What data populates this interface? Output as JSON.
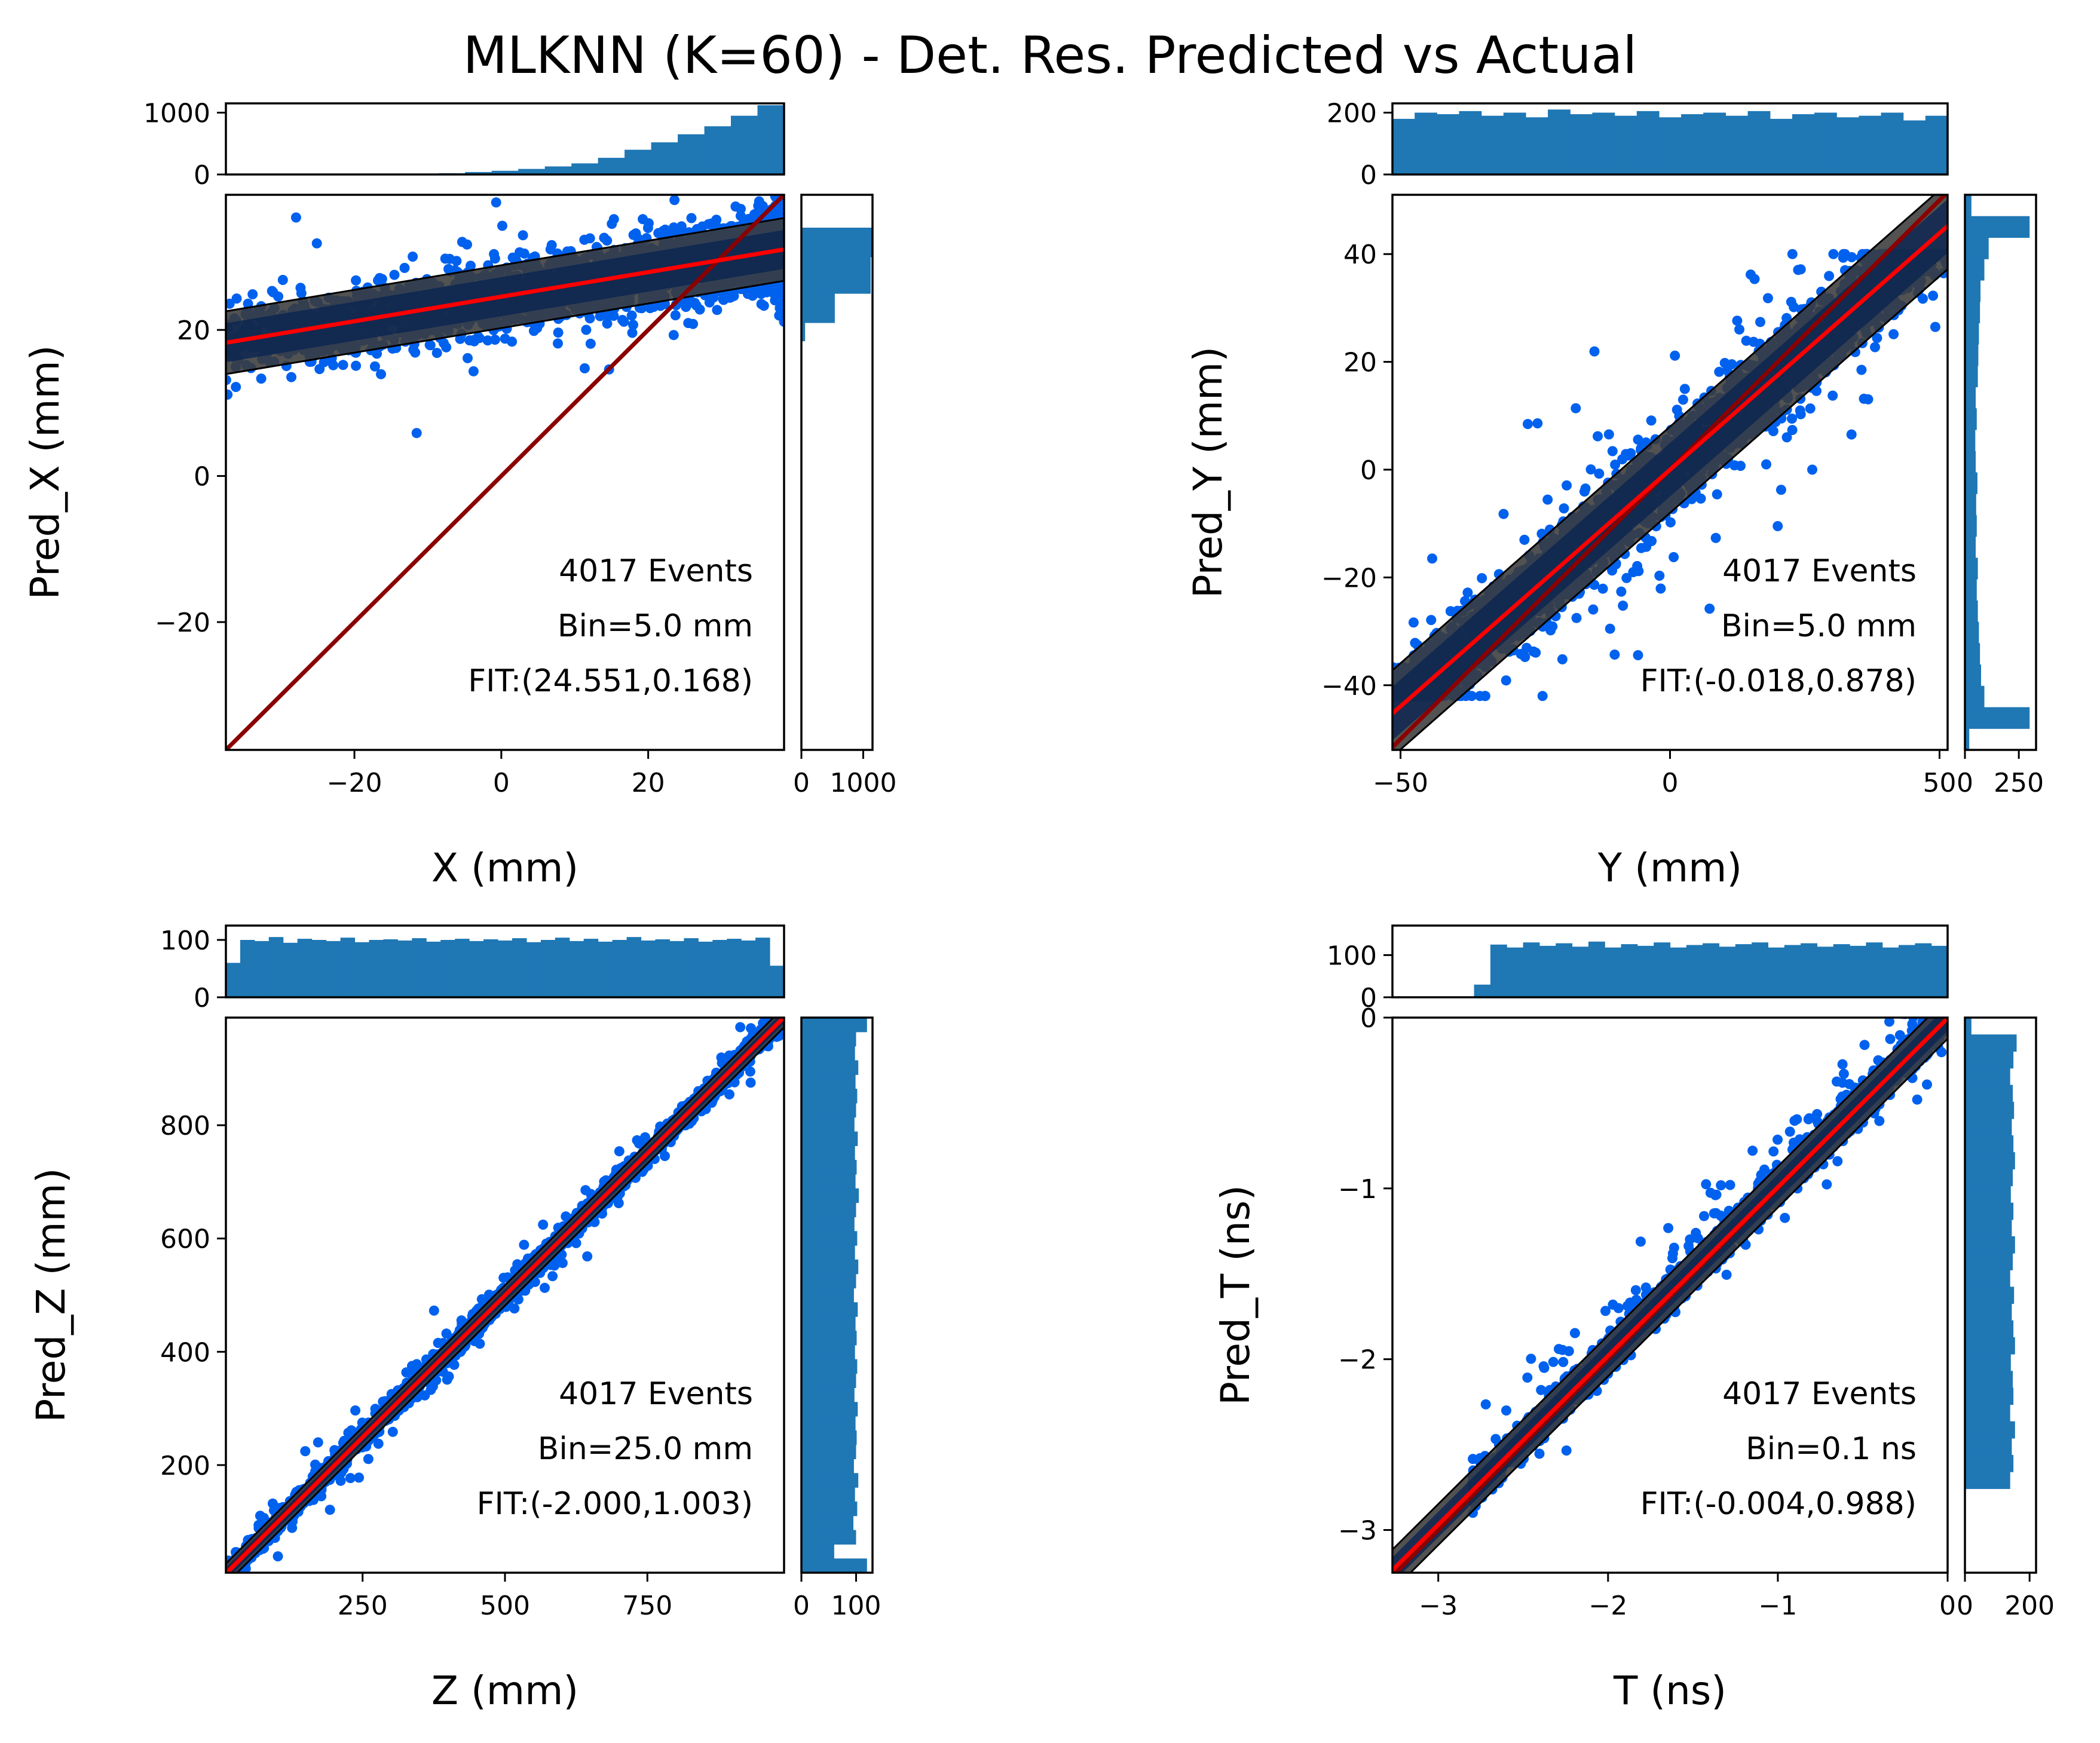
{
  "figure": {
    "title": "MLKNN (K=60) - Det. Res. Predicted vs Actual",
    "colors": {
      "scatter": "#0061ee",
      "histogram": "#1f77b4",
      "band_fill": "#3a3a3a",
      "band_edge": "#000000",
      "dense_core": "#0b2550",
      "fit_line": "#ff0000",
      "identity_line": "#8b0000"
    }
  },
  "chart_data": [
    {
      "id": "x",
      "type": "scatter",
      "xlabel": "X (mm)",
      "ylabel": "Pred_X (mm)",
      "xlim": [
        -37.5,
        38.5
      ],
      "ylim": [
        -37.5,
        38.5
      ],
      "xticks": [
        -20,
        0,
        20
      ],
      "xticklabels": [
        "−20",
        "0",
        "20"
      ],
      "yticks": [
        -20,
        0,
        20
      ],
      "yticklabels": [
        "−20",
        "0",
        "20"
      ],
      "annotations": [
        "4017 Events",
        "Bin=5.0 mm",
        "FIT:(24.551,0.168)"
      ],
      "fit": {
        "intercept": 24.551,
        "slope": 0.168
      },
      "band_halfwidth": 4.3,
      "scatter_spread": 2.5,
      "outlier_spread": 5.5,
      "x_distribution": "ramp",
      "x_hist": {
        "xlim": [
          -37.5,
          38.5
        ],
        "ylim": [
          0,
          1150
        ],
        "ticks": [
          0,
          1000
        ],
        "ticklabels": [
          "0",
          "1000"
        ],
        "bins": [
          0,
          0,
          0,
          0,
          0,
          2,
          5,
          10,
          20,
          40,
          60,
          90,
          130,
          180,
          270,
          400,
          520,
          650,
          780,
          950,
          1120
        ]
      },
      "y_hist": {
        "ylim": [
          -37.5,
          38.5
        ],
        "xlim": [
          0,
          1150
        ],
        "ticks": [
          0,
          1000
        ],
        "ticklabels": [
          "0",
          "1000"
        ],
        "bins": [
          {
            "from": 18.5,
            "to": 21.0,
            "count": 60
          },
          {
            "from": 21.0,
            "to": 25.0,
            "count": 540
          },
          {
            "from": 25.0,
            "to": 30.0,
            "count": 1120
          },
          {
            "from": 30.0,
            "to": 34.0,
            "count": 2300
          }
        ]
      }
    },
    {
      "id": "y",
      "type": "scatter",
      "xlabel": "Y (mm)",
      "ylabel": "Pred_Y (mm)",
      "xlim": [
        -51.5,
        51.5
      ],
      "ylim": [
        -52,
        51
      ],
      "xticks": [
        -50,
        0,
        50
      ],
      "xticklabels": [
        "−50",
        "0",
        "50"
      ],
      "yticks": [
        -40,
        -20,
        0,
        20,
        40
      ],
      "yticklabels": [
        "−40",
        "−20",
        "0",
        "20",
        "40"
      ],
      "annotations": [
        "4017 Events",
        "Bin=5.0 mm",
        "FIT:(-0.018,0.878)"
      ],
      "fit": {
        "intercept": -0.018,
        "slope": 0.878
      },
      "band_halfwidth": 8,
      "scatter_spread": 4,
      "outlier_spread": 12,
      "clip_y": [
        -42,
        40
      ],
      "x_distribution": "uniform",
      "x_hist": {
        "xlim": [
          -51.5,
          51.5
        ],
        "ylim": [
          0,
          230
        ],
        "ticks": [
          0,
          200
        ],
        "ticklabels": [
          "0",
          "200"
        ],
        "bins": [
          180,
          200,
          195,
          205,
          190,
          200,
          185,
          210,
          195,
          200,
          190,
          205,
          185,
          195,
          200,
          190,
          205,
          180,
          195,
          200,
          185,
          190,
          200,
          175,
          190
        ]
      },
      "y_hist": {
        "ylim": [
          -52,
          51
        ],
        "xlim": [
          0,
          330
        ],
        "ticks": [
          0,
          250
        ],
        "ticklabels": [
          "0",
          "250"
        ],
        "bins": [
          20,
          300,
          90,
          75,
          70,
          65,
          60,
          55,
          60,
          50,
          55,
          52,
          58,
          50,
          48,
          55,
          50,
          60,
          62,
          65,
          70,
          72,
          90,
          110,
          300,
          30
        ]
      }
    },
    {
      "id": "z",
      "type": "scatter",
      "xlabel": "Z (mm)",
      "ylabel": "Pred_Z (mm)",
      "xlim": [
        10,
        990
      ],
      "ylim": [
        10,
        990
      ],
      "xticks": [
        250,
        500,
        750
      ],
      "xticklabels": [
        "250",
        "500",
        "750"
      ],
      "yticks": [
        200,
        400,
        600,
        800
      ],
      "yticklabels": [
        "200",
        "400",
        "600",
        "800"
      ],
      "annotations": [
        "4017 Events",
        "Bin=25.0 mm",
        "FIT:(-2.000,1.003)"
      ],
      "fit": {
        "intercept": -2.0,
        "slope": 1.003
      },
      "band_halfwidth": 18,
      "scatter_spread": 10,
      "outlier_spread": 30,
      "x_distribution": "uniform",
      "x_hist": {
        "xlim": [
          10,
          990
        ],
        "ylim": [
          0,
          125
        ],
        "ticks": [
          0,
          100
        ],
        "ticklabels": [
          "0",
          "100"
        ],
        "bins": [
          60,
          100,
          98,
          105,
          95,
          102,
          100,
          98,
          104,
          96,
          100,
          101,
          99,
          103,
          97,
          100,
          102,
          98,
          101,
          99,
          103,
          96,
          100,
          104,
          98,
          102,
          97,
          100,
          105,
          99,
          101,
          98,
          103,
          97,
          100,
          102,
          99,
          104,
          55
        ]
      },
      "y_hist": {
        "ylim": [
          10,
          990
        ],
        "xlim": [
          0,
          130
        ],
        "ticks": [
          0,
          100
        ],
        "ticklabels": [
          "0",
          "100"
        ],
        "bins": [
          120,
          60,
          100,
          95,
          102,
          98,
          104,
          96,
          100,
          101,
          99,
          103,
          97,
          100,
          102,
          98,
          101,
          99,
          103,
          96,
          100,
          104,
          98,
          102,
          97,
          100,
          105,
          99,
          101,
          98,
          103,
          97,
          100,
          102,
          99,
          104,
          98,
          100,
          120
        ]
      }
    },
    {
      "id": "t",
      "type": "scatter",
      "xlabel": "T (ns)",
      "ylabel": "Pred_T (ns)",
      "xlim": [
        -3.27,
        0.0
      ],
      "ylim": [
        -3.25,
        0.0
      ],
      "xticks": [
        -3,
        -2,
        -1,
        0
      ],
      "xticklabels": [
        "−3",
        "−2",
        "−1",
        "0"
      ],
      "yticks": [
        -3,
        -2,
        -1,
        0
      ],
      "yticklabels": [
        "−3",
        "−2",
        "−1",
        "0"
      ],
      "annotations": [
        "4017 Events",
        "Bin=0.1 ns",
        "FIT:(-0.004,0.988)"
      ],
      "fit": {
        "intercept": -0.004,
        "slope": 0.988
      },
      "band_halfwidth": 0.12,
      "scatter_spread": 0.05,
      "outlier_spread": 0.15,
      "outlier_bias": 0.22,
      "x_range": [
        -2.8,
        -0.02
      ],
      "x_distribution": "uniform",
      "x_hist": {
        "xlim": [
          -3.27,
          0.0
        ],
        "ylim": [
          0,
          170
        ],
        "ticks": [
          0,
          100
        ],
        "ticklabels": [
          "0",
          "100"
        ],
        "bins": [
          0,
          0,
          0,
          0,
          0,
          30,
          125,
          118,
          130,
          122,
          128,
          120,
          132,
          118,
          126,
          122,
          130,
          118,
          124,
          128,
          120,
          126,
          130,
          118,
          124,
          128,
          120,
          126,
          122,
          130,
          118,
          124,
          128,
          122
        ]
      },
      "y_hist": {
        "ylim": [
          -3.25,
          0.0
        ],
        "xlim": [
          0,
          220
        ],
        "ticks": [
          0,
          200
        ],
        "ticklabels": [
          "0",
          "200"
        ],
        "bins": [
          0,
          0,
          0,
          0,
          0,
          140,
          150,
          145,
          155,
          140,
          150,
          148,
          142,
          155,
          150,
          145,
          152,
          140,
          148,
          155,
          145,
          150,
          142,
          148,
          155,
          150,
          145,
          152,
          148,
          140,
          150,
          160,
          20
        ]
      }
    }
  ]
}
